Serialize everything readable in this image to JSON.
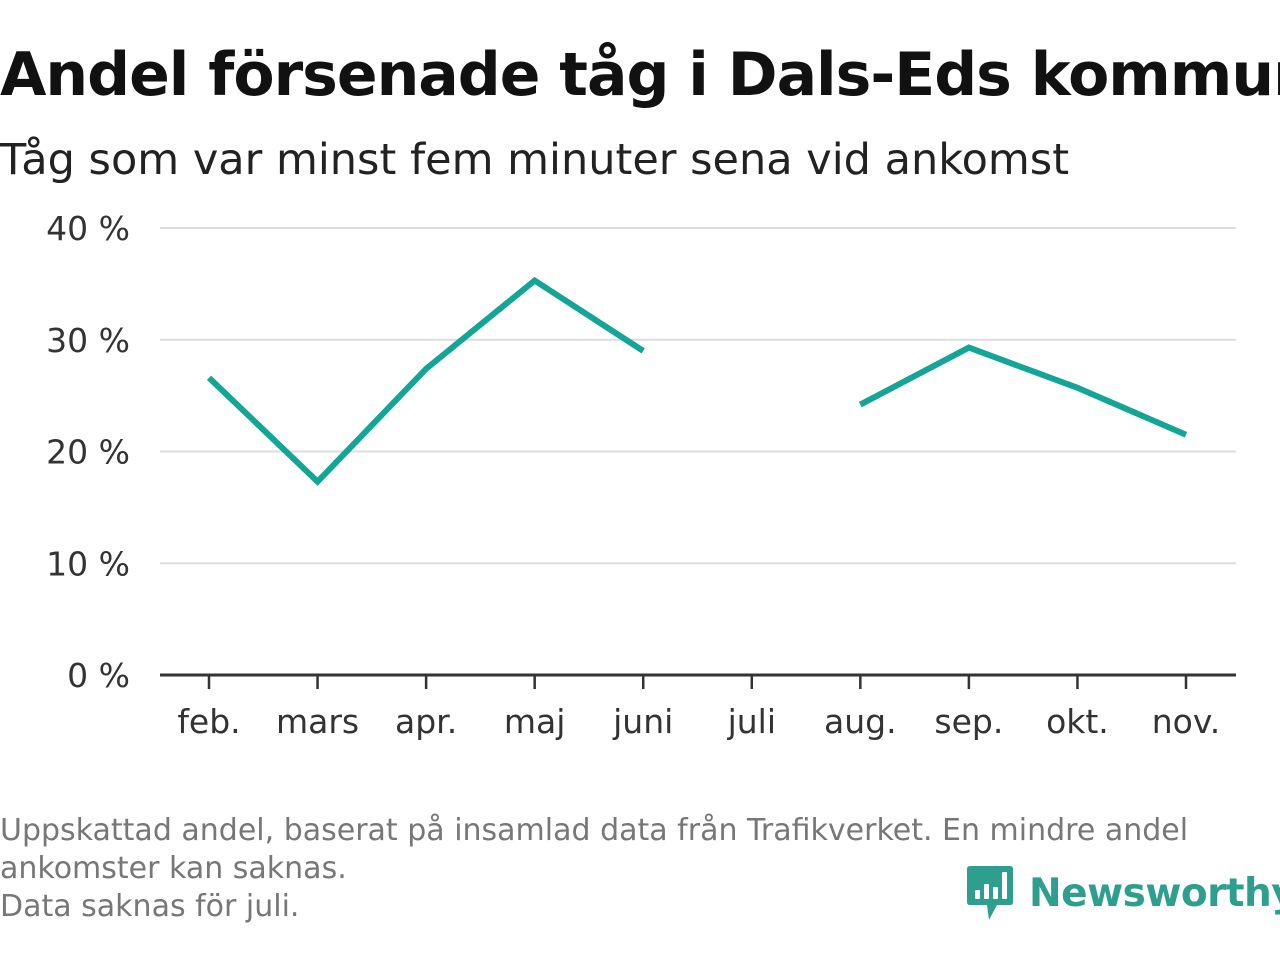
{
  "header": {
    "title": "Andel försenade tåg i Dals-Eds kommun",
    "subtitle": "Tåg som var minst fem minuter sena vid ankomst"
  },
  "footnote": {
    "lines": [
      "Uppskattad andel, baserat på insamlad data från Trafikverket. En mindre andel",
      "ankomster kan saknas.",
      "Data saknas för juli."
    ]
  },
  "logo": {
    "text": "Newsworthy",
    "icon": "newsworthy-logo-icon",
    "color": "#2e9e8e"
  },
  "chart_data": {
    "type": "line",
    "title": "Andel försenade tåg i Dals-Eds kommun",
    "subtitle": "Tåg som var minst fem minuter sena vid ankomst",
    "xlabel": "",
    "ylabel": "",
    "categories": [
      "feb.",
      "mars",
      "apr.",
      "maj",
      "juni",
      "juli",
      "aug.",
      "sep.",
      "okt.",
      "nov."
    ],
    "series": [
      {
        "values": [
          26.6,
          17.3,
          27.4,
          35.3,
          29.0,
          null,
          24.2,
          29.3,
          25.7,
          21.5
        ],
        "color": "#13a596"
      }
    ],
    "ylim": [
      0,
      40
    ],
    "yticks": [
      0,
      10,
      20,
      30,
      40
    ],
    "ytick_labels": [
      "0 %",
      "10 %",
      "20 %",
      "30 %",
      "40 %"
    ],
    "grid": true,
    "legend": "none"
  }
}
